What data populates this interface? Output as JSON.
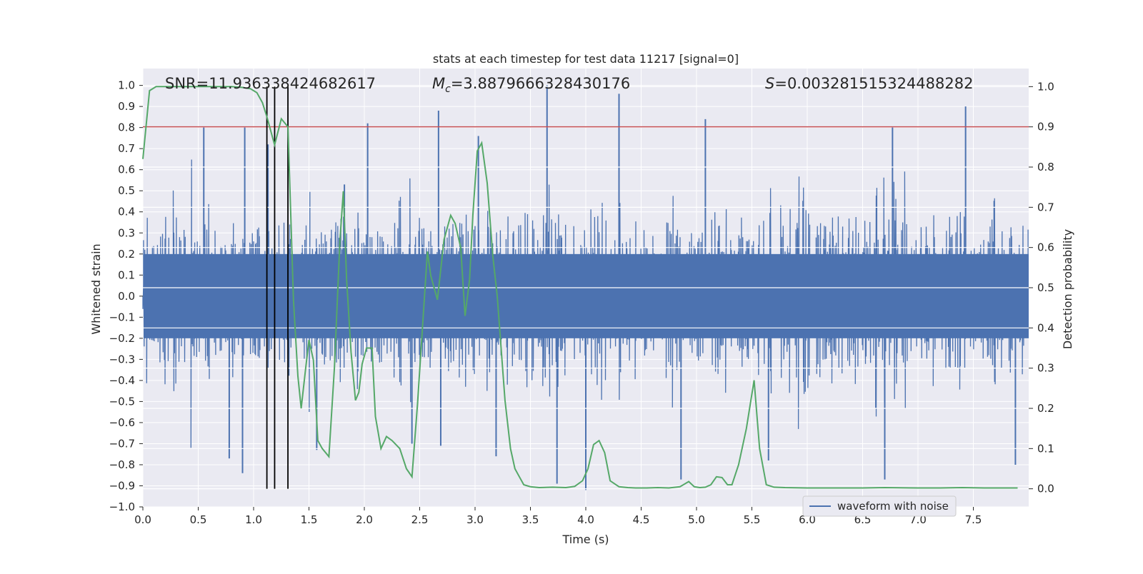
{
  "chart_data": {
    "type": "line",
    "title": "stats at each timestep for test data 11217 [signal=0]",
    "xlabel": "Time (s)",
    "ylabel_left": "Whitened strain",
    "ylabel_right": "Detection probability",
    "xlim": [
      0.0,
      8.0
    ],
    "ylim_left": [
      -1.0,
      1.08
    ],
    "ylim_right": [
      -0.045,
      1.045
    ],
    "xticks": [
      "0.0",
      "0.5",
      "1.0",
      "1.5",
      "2.0",
      "2.5",
      "3.0",
      "3.5",
      "4.0",
      "4.5",
      "5.0",
      "5.5",
      "6.0",
      "6.5",
      "7.0",
      "7.5"
    ],
    "xtick_values": [
      0.0,
      0.5,
      1.0,
      1.5,
      2.0,
      2.5,
      3.0,
      3.5,
      4.0,
      4.5,
      5.0,
      5.5,
      6.0,
      6.5,
      7.0,
      7.5
    ],
    "yticks_left": [
      "−1.0",
      "−0.9",
      "−0.8",
      "−0.7",
      "−0.6",
      "−0.5",
      "−0.4",
      "−0.3",
      "−0.2",
      "−0.1",
      "0.0",
      "0.1",
      "0.2",
      "0.3",
      "0.4",
      "0.5",
      "0.6",
      "0.7",
      "0.8",
      "0.9",
      "1.0"
    ],
    "ytick_values_left": [
      -1.0,
      -0.9,
      -0.8,
      -0.7,
      -0.6,
      -0.5,
      -0.4,
      -0.3,
      -0.2,
      -0.1,
      0.0,
      0.1,
      0.2,
      0.3,
      0.4,
      0.5,
      0.6,
      0.7,
      0.8,
      0.9,
      1.0
    ],
    "yticks_right": [
      "0.0",
      "0.1",
      "0.2",
      "0.3",
      "0.4",
      "0.5",
      "0.6",
      "0.7",
      "0.8",
      "0.9",
      "1.0"
    ],
    "ytick_values_right": [
      0.0,
      0.1,
      0.2,
      0.3,
      0.4,
      0.5,
      0.6,
      0.7,
      0.8,
      0.9,
      1.0
    ],
    "annotations": {
      "snr": "SNR=11.936338424682617",
      "mc_symbol": "M",
      "mc_sub": "c",
      "mc_value": "=3.8879666328430176",
      "s_symbol": "S",
      "s_value": "=0.003281515324488282"
    },
    "legend": {
      "label": "waveform with noise",
      "position": "lower-right"
    },
    "threshold_right": 0.9,
    "vertical_markers_s": [
      1.12,
      1.19,
      1.31
    ],
    "waveform": {
      "name": "waveform with noise",
      "seed": 11217,
      "sigma": 0.2,
      "sample_count": 1400,
      "spikes": [
        {
          "t": 0.55,
          "v": 0.8
        },
        {
          "t": 0.92,
          "v": 0.8
        },
        {
          "t": 1.13,
          "v": 0.72
        },
        {
          "t": 1.82,
          "v": 0.53
        },
        {
          "t": 2.03,
          "v": 0.82
        },
        {
          "t": 2.67,
          "v": 0.88
        },
        {
          "t": 3.03,
          "v": 0.76
        },
        {
          "t": 3.65,
          "v": 1.0
        },
        {
          "t": 4.3,
          "v": 0.96
        },
        {
          "t": 5.08,
          "v": 0.84
        },
        {
          "t": 7.43,
          "v": 0.9
        },
        {
          "t": 6.77,
          "v": 0.8
        },
        {
          "t": 0.9,
          "v": -0.84
        },
        {
          "t": 0.78,
          "v": -0.77
        },
        {
          "t": 3.74,
          "v": -0.89
        },
        {
          "t": 4.0,
          "v": -0.92
        },
        {
          "t": 4.86,
          "v": -0.87
        },
        {
          "t": 5.65,
          "v": -0.78
        },
        {
          "t": 6.7,
          "v": -0.87
        },
        {
          "t": 7.88,
          "v": -0.8
        },
        {
          "t": 1.57,
          "v": -0.73
        },
        {
          "t": 2.43,
          "v": -0.7
        },
        {
          "t": 3.19,
          "v": -0.76
        },
        {
          "t": 2.69,
          "v": -0.71
        }
      ]
    },
    "series": [
      {
        "name": "detection probability",
        "color": "#55a868",
        "axis": "right",
        "x": [
          0.0,
          0.06,
          0.12,
          0.2,
          0.35,
          0.5,
          0.65,
          0.8,
          0.9,
          0.97,
          1.03,
          1.08,
          1.12,
          1.19,
          1.25,
          1.31,
          1.36,
          1.4,
          1.43,
          1.47,
          1.5,
          1.54,
          1.58,
          1.62,
          1.68,
          1.73,
          1.78,
          1.81,
          1.84,
          1.88,
          1.92,
          1.95,
          1.98,
          2.02,
          2.07,
          2.1,
          2.15,
          2.2,
          2.25,
          2.32,
          2.38,
          2.43,
          2.48,
          2.53,
          2.57,
          2.6,
          2.66,
          2.72,
          2.78,
          2.82,
          2.87,
          2.91,
          2.95,
          2.98,
          3.02,
          3.06,
          3.11,
          3.16,
          3.2,
          3.27,
          3.32,
          3.36,
          3.4,
          3.44,
          3.5,
          3.58,
          3.7,
          3.82,
          3.9,
          3.97,
          4.02,
          4.07,
          4.12,
          4.17,
          4.22,
          4.3,
          4.38,
          4.45,
          4.55,
          4.65,
          4.75,
          4.85,
          4.93,
          4.98,
          5.03,
          5.08,
          5.13,
          5.18,
          5.23,
          5.28,
          5.32,
          5.38,
          5.45,
          5.52,
          5.57,
          5.63,
          5.7,
          5.8,
          6.0,
          6.3,
          6.5,
          6.7,
          7.0,
          7.2,
          7.4,
          7.6,
          7.9
        ],
        "y": [
          0.82,
          0.99,
          1.0,
          1.0,
          1.0,
          1.0,
          1.0,
          1.0,
          0.998,
          0.995,
          0.985,
          0.96,
          0.925,
          0.855,
          0.92,
          0.9,
          0.47,
          0.28,
          0.2,
          0.3,
          0.37,
          0.32,
          0.12,
          0.1,
          0.08,
          0.3,
          0.62,
          0.74,
          0.52,
          0.34,
          0.22,
          0.24,
          0.31,
          0.35,
          0.35,
          0.18,
          0.1,
          0.13,
          0.12,
          0.1,
          0.05,
          0.03,
          0.21,
          0.42,
          0.59,
          0.53,
          0.47,
          0.62,
          0.68,
          0.66,
          0.6,
          0.43,
          0.52,
          0.68,
          0.84,
          0.86,
          0.76,
          0.58,
          0.48,
          0.22,
          0.1,
          0.05,
          0.03,
          0.01,
          0.005,
          0.003,
          0.004,
          0.003,
          0.006,
          0.02,
          0.05,
          0.11,
          0.12,
          0.09,
          0.02,
          0.005,
          0.003,
          0.002,
          0.002,
          0.003,
          0.002,
          0.005,
          0.018,
          0.005,
          0.003,
          0.004,
          0.01,
          0.03,
          0.028,
          0.01,
          0.01,
          0.06,
          0.15,
          0.27,
          0.1,
          0.01,
          0.004,
          0.003,
          0.002,
          0.002,
          0.002,
          0.003,
          0.002,
          0.002,
          0.003,
          0.002,
          0.002
        ]
      }
    ],
    "colors": {
      "waveform": "#4c72b0",
      "probability": "#55a868",
      "threshold": "#c44e52",
      "markers": "#000000",
      "plot_bg": "#eaeaf2",
      "grid": "#ffffff"
    }
  }
}
